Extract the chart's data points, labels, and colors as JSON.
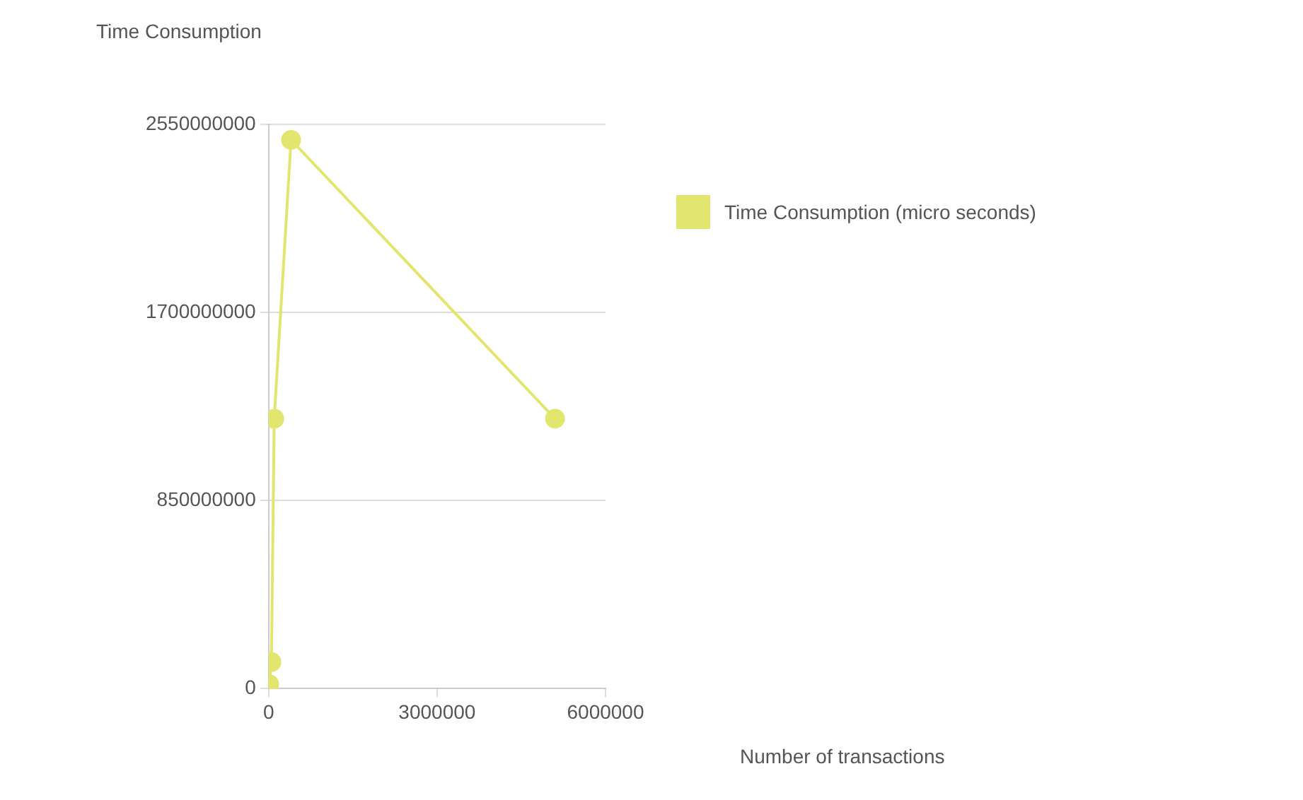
{
  "chart_data": {
    "type": "line",
    "xlabel": "Number of transactions",
    "ylabel": "Time Consumption",
    "x": [
      1000,
      10000,
      50000,
      100000,
      400000,
      5100000
    ],
    "series": [
      {
        "name": "Time Consumption (micro seconds)",
        "color": "#e3e66e",
        "values": [
          3000000,
          20000000,
          120000000,
          1220000000,
          2480000000,
          1220000000
        ]
      }
    ],
    "xlim": [
      0,
      6000000
    ],
    "xticks": [
      0,
      3000000,
      6000000
    ],
    "ylim": [
      0,
      2550000000
    ],
    "yticks": [
      0,
      850000000,
      1700000000,
      2550000000
    ],
    "grid": "y",
    "legend": "right",
    "marker": "circle",
    "line_style": "solid"
  }
}
